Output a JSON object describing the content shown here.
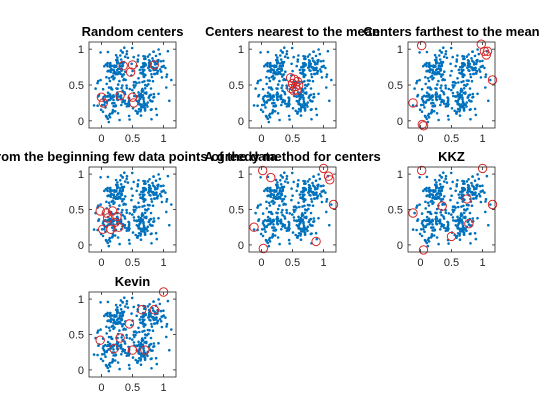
{
  "colors": {
    "points": "#0072BD",
    "centers": "#D62728",
    "axis": "#262626",
    "background": "#ffffff"
  },
  "chart_data": [
    {
      "type": "scatter",
      "title": "Random centers",
      "xlim": [
        -0.2,
        1.2
      ],
      "ylim": [
        -0.1,
        1.1
      ],
      "xticks": [
        "0",
        "0.5",
        "1"
      ],
      "xtick_values": [
        0,
        0.5,
        1
      ],
      "yticks": [
        "0",
        "0.5",
        "1"
      ],
      "ytick_values": [
        0,
        0.5,
        1
      ],
      "centers": [
        [
          0.35,
          0.77
        ],
        [
          0.5,
          0.78
        ],
        [
          0.47,
          0.68
        ],
        [
          0.85,
          0.78
        ],
        [
          0.0,
          0.33
        ],
        [
          0.03,
          0.25
        ],
        [
          0.3,
          0.35
        ],
        [
          0.5,
          0.33
        ],
        [
          0.52,
          0.25
        ]
      ]
    },
    {
      "type": "scatter",
      "title": "Centers nearest to the mean",
      "xlim": [
        -0.2,
        1.2
      ],
      "ylim": [
        -0.1,
        1.1
      ],
      "xticks": [
        "0",
        "0.5",
        "1"
      ],
      "xtick_values": [
        0,
        0.5,
        1
      ],
      "yticks": [
        "0",
        "0.5",
        "1"
      ],
      "ytick_values": [
        0,
        0.5,
        1
      ],
      "centers": [
        [
          0.47,
          0.6
        ],
        [
          0.53,
          0.58
        ],
        [
          0.58,
          0.55
        ],
        [
          0.5,
          0.52
        ],
        [
          0.55,
          0.48
        ],
        [
          0.6,
          0.5
        ],
        [
          0.48,
          0.45
        ],
        [
          0.52,
          0.42
        ],
        [
          0.57,
          0.43
        ]
      ]
    },
    {
      "type": "scatter",
      "title": "Centers farthest to the mean",
      "xlim": [
        -0.2,
        1.2
      ],
      "ylim": [
        -0.1,
        1.1
      ],
      "xticks": [
        "0",
        "0.5",
        "1"
      ],
      "xtick_values": [
        0,
        0.5,
        1
      ],
      "yticks": [
        "0",
        "0.5",
        "1"
      ],
      "ytick_values": [
        0,
        0.5,
        1
      ],
      "centers": [
        [
          0.02,
          1.05
        ],
        [
          0.98,
          1.07
        ],
        [
          1.03,
          0.97
        ],
        [
          1.08,
          0.97
        ],
        [
          1.06,
          0.92
        ],
        [
          1.16,
          0.57
        ],
        [
          -0.12,
          0.25
        ],
        [
          0.03,
          -0.05
        ],
        [
          0.05,
          -0.07
        ]
      ]
    },
    {
      "type": "scatter",
      "title": "From the beginning few data points of the data",
      "xlim": [
        -0.2,
        1.2
      ],
      "ylim": [
        -0.1,
        1.1
      ],
      "xticks": [
        "0",
        "0.5",
        "1"
      ],
      "xtick_values": [
        0,
        0.5,
        1
      ],
      "yticks": [
        "0",
        "0.5",
        "1"
      ],
      "ytick_values": [
        0,
        0.5,
        1
      ],
      "centers": [
        [
          -0.02,
          0.48
        ],
        [
          0.08,
          0.45
        ],
        [
          0.1,
          0.38
        ],
        [
          0.22,
          0.32
        ],
        [
          0.28,
          0.25
        ],
        [
          0.15,
          0.22
        ],
        [
          0.02,
          0.22
        ],
        [
          0.18,
          0.48
        ],
        [
          0.25,
          0.4
        ]
      ]
    },
    {
      "type": "scatter",
      "title": "A greedy method for centers",
      "xlim": [
        -0.2,
        1.2
      ],
      "ylim": [
        -0.1,
        1.1
      ],
      "xticks": [
        "0",
        "0.5",
        "1"
      ],
      "xtick_values": [
        0,
        0.5,
        1
      ],
      "yticks": [
        "0",
        "0.5",
        "1"
      ],
      "ytick_values": [
        0,
        0.5,
        1
      ],
      "centers": [
        [
          0.02,
          1.05
        ],
        [
          0.15,
          0.95
        ],
        [
          1.0,
          1.08
        ],
        [
          1.08,
          0.97
        ],
        [
          1.1,
          0.92
        ],
        [
          1.16,
          0.57
        ],
        [
          -0.12,
          0.25
        ],
        [
          0.03,
          -0.05
        ],
        [
          0.88,
          0.05
        ]
      ]
    },
    {
      "type": "scatter",
      "title": "KKZ",
      "xlim": [
        -0.2,
        1.2
      ],
      "ylim": [
        -0.1,
        1.1
      ],
      "xticks": [
        "0",
        "0.5",
        "1"
      ],
      "xtick_values": [
        0,
        0.5,
        1
      ],
      "yticks": [
        "0",
        "0.5",
        "1"
      ],
      "ytick_values": [
        0,
        0.5,
        1
      ],
      "centers": [
        [
          0.02,
          1.05
        ],
        [
          1.0,
          1.08
        ],
        [
          1.16,
          0.57
        ],
        [
          -0.12,
          0.45
        ],
        [
          0.05,
          -0.07
        ],
        [
          0.35,
          0.55
        ],
        [
          0.5,
          0.12
        ],
        [
          0.78,
          0.3
        ],
        [
          0.75,
          0.65
        ]
      ]
    },
    {
      "type": "scatter",
      "title": "Kevin",
      "xlim": [
        -0.2,
        1.2
      ],
      "ylim": [
        -0.1,
        1.1
      ],
      "xticks": [
        "0",
        "0.5",
        "1"
      ],
      "xtick_values": [
        0,
        0.5,
        1
      ],
      "yticks": [
        "0",
        "0.5",
        "1"
      ],
      "ytick_values": [
        0,
        0.5,
        1
      ],
      "centers": [
        [
          1.0,
          1.1
        ],
        [
          0.65,
          0.85
        ],
        [
          0.85,
          0.85
        ],
        [
          0.45,
          0.65
        ],
        [
          -0.02,
          0.42
        ],
        [
          0.3,
          0.45
        ],
        [
          0.2,
          0.3
        ],
        [
          0.5,
          0.28
        ],
        [
          0.7,
          0.28
        ]
      ]
    }
  ]
}
